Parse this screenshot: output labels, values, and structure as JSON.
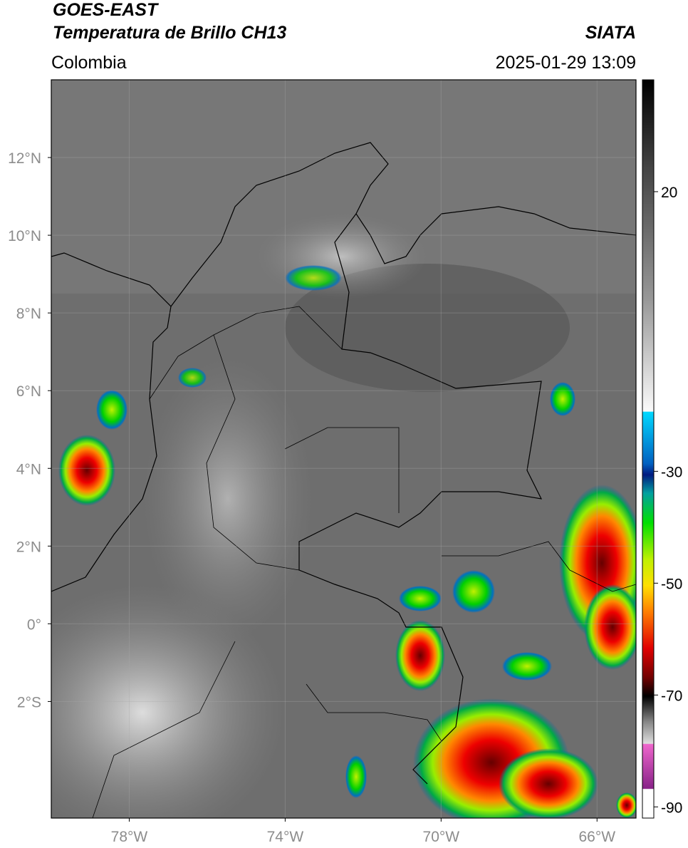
{
  "header": {
    "title_line1": "GOES-EAST",
    "title_line2": "Temperatura de Brillo CH13",
    "region": "Colombia",
    "source": "SIATA",
    "datetime": "2025-01-29 13:09"
  },
  "map": {
    "xlim": [
      -80,
      -65
    ],
    "ylim": [
      -5,
      14
    ],
    "grid": true,
    "xticks": [
      {
        "value": -78,
        "label": "78°W"
      },
      {
        "value": -74,
        "label": "74°W"
      },
      {
        "value": -70,
        "label": "70°W"
      },
      {
        "value": -66,
        "label": "66°W"
      }
    ],
    "yticks": [
      {
        "value": 12,
        "label": "12°N"
      },
      {
        "value": 10,
        "label": "10°N"
      },
      {
        "value": 8,
        "label": "8°N"
      },
      {
        "value": 6,
        "label": "6°N"
      },
      {
        "value": 4,
        "label": "4°N"
      },
      {
        "value": 2,
        "label": "2°N"
      },
      {
        "value": 0,
        "label": "0°"
      },
      {
        "value": -2,
        "label": "2°S"
      }
    ]
  },
  "colorbar": {
    "lim": [
      -92,
      40
    ],
    "ticks": [
      20,
      -30,
      -50,
      -70,
      -90
    ]
  }
}
